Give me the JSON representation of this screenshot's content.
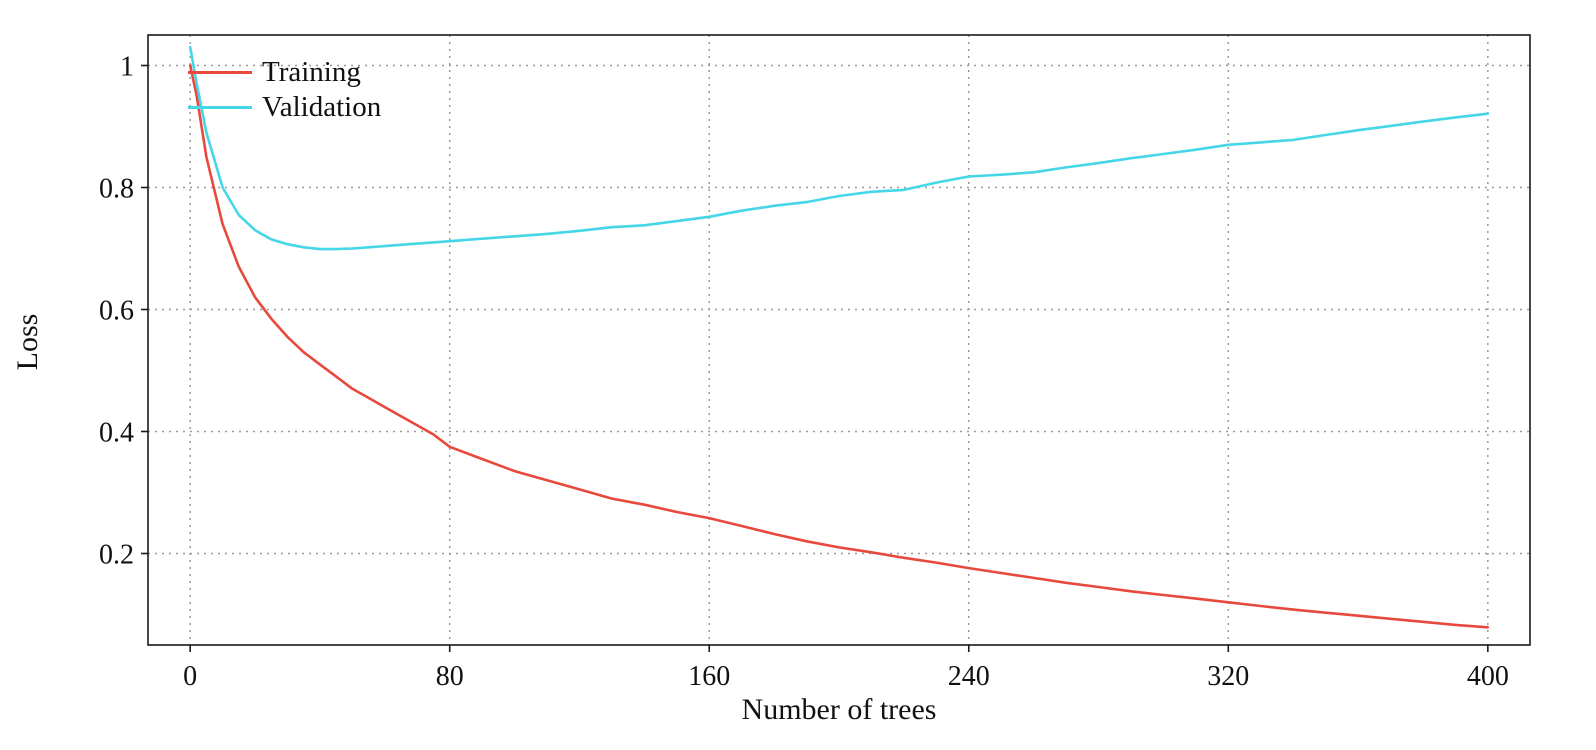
{
  "chart_data": {
    "type": "line",
    "title": "",
    "xlabel": "Number of trees",
    "ylabel": "Loss",
    "xlim": [
      -13,
      413
    ],
    "ylim": [
      0.05,
      1.05
    ],
    "x_ticks": [
      0,
      80,
      160,
      240,
      320,
      400
    ],
    "x_tick_labels": [
      "0",
      "80",
      "160",
      "240",
      "320",
      "400"
    ],
    "y_ticks": [
      0.2,
      0.4,
      0.6,
      0.8,
      1
    ],
    "y_tick_labels": [
      "0.2",
      "0.4",
      "0.6",
      "0.8",
      "1"
    ],
    "grid": "dotted",
    "legend_position": "top-left",
    "colors": {
      "training": "#e8493d",
      "validation": "#45d7e8",
      "grid": "#9a9a9a",
      "frame": "#1a1a1a",
      "text": "#111111"
    },
    "x": [
      0,
      2,
      5,
      10,
      15,
      20,
      25,
      30,
      35,
      40,
      45,
      50,
      55,
      60,
      65,
      70,
      75,
      80,
      90,
      100,
      110,
      120,
      130,
      140,
      150,
      160,
      170,
      180,
      190,
      200,
      210,
      220,
      230,
      240,
      250,
      260,
      270,
      280,
      290,
      300,
      310,
      320,
      330,
      340,
      350,
      360,
      370,
      380,
      390,
      400
    ],
    "series": [
      {
        "name": "Training",
        "color_key": "training",
        "values": [
          1.0,
          0.95,
          0.85,
          0.74,
          0.67,
          0.62,
          0.585,
          0.555,
          0.53,
          0.51,
          0.49,
          0.47,
          0.455,
          0.44,
          0.425,
          0.41,
          0.395,
          0.375,
          0.355,
          0.335,
          0.32,
          0.305,
          0.29,
          0.28,
          0.268,
          0.258,
          0.245,
          0.232,
          0.22,
          0.21,
          0.202,
          0.193,
          0.185,
          0.176,
          0.168,
          0.16,
          0.152,
          0.145,
          0.138,
          0.132,
          0.126,
          0.12,
          0.114,
          0.108,
          0.103,
          0.098,
          0.093,
          0.088,
          0.083,
          0.079
        ]
      },
      {
        "name": "Validation",
        "color_key": "validation",
        "values": [
          1.03,
          0.97,
          0.89,
          0.8,
          0.755,
          0.73,
          0.715,
          0.707,
          0.702,
          0.699,
          0.699,
          0.7,
          0.702,
          0.704,
          0.706,
          0.708,
          0.71,
          0.712,
          0.716,
          0.72,
          0.724,
          0.729,
          0.735,
          0.738,
          0.745,
          0.752,
          0.762,
          0.77,
          0.776,
          0.786,
          0.793,
          0.796,
          0.808,
          0.818,
          0.821,
          0.825,
          0.833,
          0.84,
          0.848,
          0.855,
          0.862,
          0.87,
          0.874,
          0.878,
          0.886,
          0.894,
          0.901,
          0.908,
          0.915,
          0.921
        ]
      }
    ]
  }
}
